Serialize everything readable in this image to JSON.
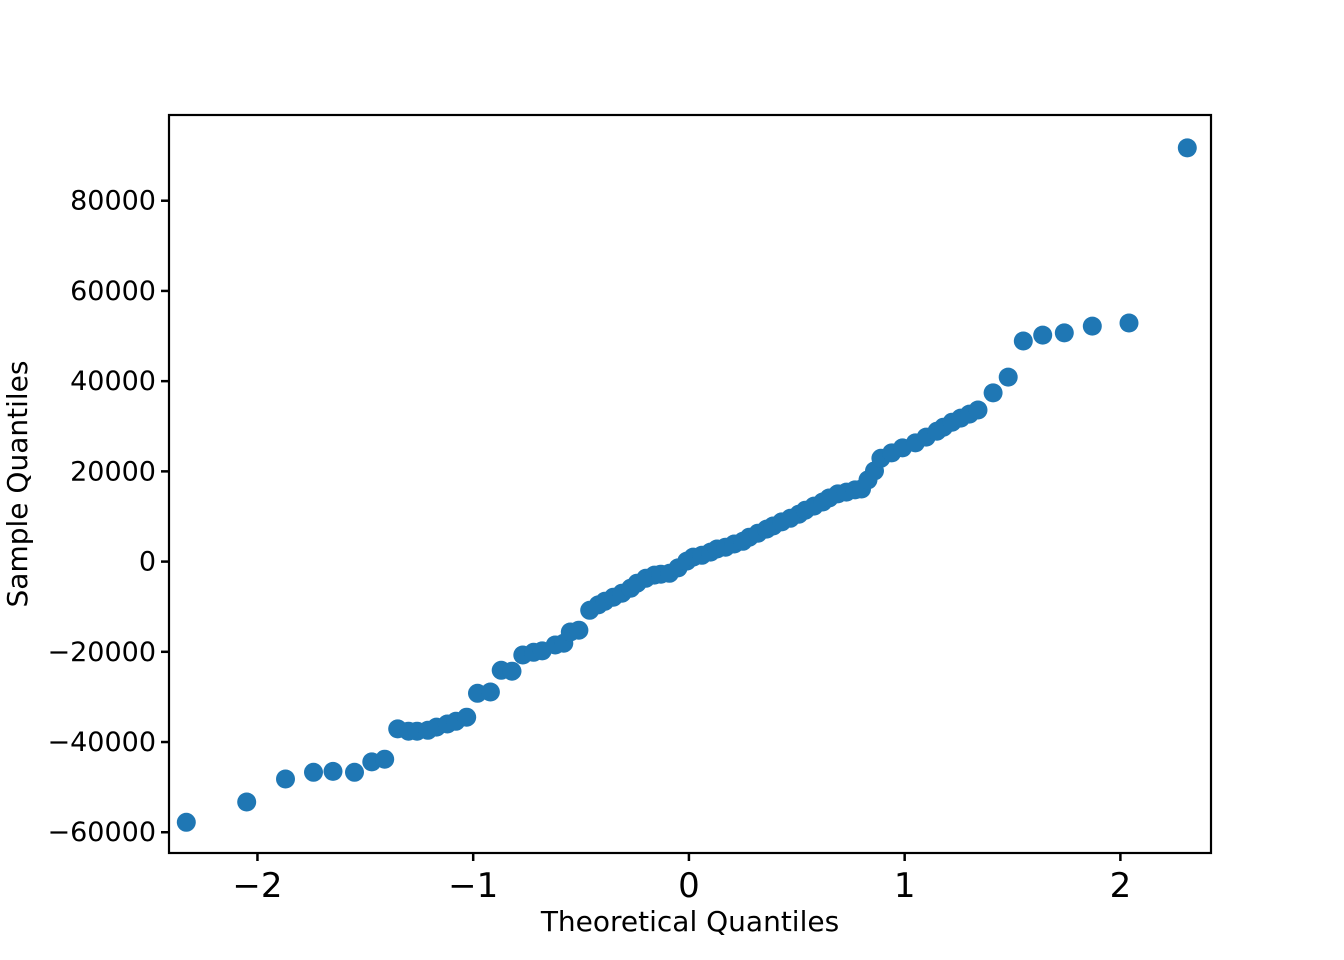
{
  "chart_data": {
    "type": "scatter",
    "title": "",
    "xlabel": "Theoretical Quantiles",
    "ylabel": "Sample Quantiles",
    "xlim": [
      -2.41,
      2.42
    ],
    "ylim": [
      -64600,
      99000
    ],
    "x_ticks": [
      -2,
      -1,
      0,
      1,
      2
    ],
    "x_tick_labels": [
      "−2",
      "−1",
      "0",
      "1",
      "2"
    ],
    "y_ticks": [
      -60000,
      -40000,
      -20000,
      0,
      20000,
      40000,
      60000,
      80000
    ],
    "y_tick_labels": [
      "−60000",
      "−40000",
      "−20000",
      "0",
      "20000",
      "40000",
      "60000",
      "80000"
    ],
    "grid": false,
    "legend": null,
    "marker": {
      "shape": "circle",
      "color": "#1f77b4",
      "radius_px": 9.5
    },
    "points": [
      [
        -2.33,
        -57800
      ],
      [
        -2.05,
        -53300
      ],
      [
        -1.87,
        -48200
      ],
      [
        -1.74,
        -46700
      ],
      [
        -1.65,
        -46500
      ],
      [
        -1.55,
        -46700
      ],
      [
        -1.47,
        -44400
      ],
      [
        -1.41,
        -43800
      ],
      [
        -1.35,
        -37100
      ],
      [
        -1.3,
        -37600
      ],
      [
        -1.26,
        -37600
      ],
      [
        -1.21,
        -37400
      ],
      [
        -1.17,
        -36700
      ],
      [
        -1.12,
        -36000
      ],
      [
        -1.08,
        -35400
      ],
      [
        -1.03,
        -34500
      ],
      [
        -0.98,
        -29200
      ],
      [
        -0.92,
        -28900
      ],
      [
        -0.87,
        -24100
      ],
      [
        -0.82,
        -24300
      ],
      [
        -0.77,
        -20700
      ],
      [
        -0.72,
        -20100
      ],
      [
        -0.68,
        -19800
      ],
      [
        -0.62,
        -18500
      ],
      [
        -0.58,
        -18100
      ],
      [
        -0.55,
        -15600
      ],
      [
        -0.51,
        -15200
      ],
      [
        -0.46,
        -10800
      ],
      [
        -0.42,
        -9600
      ],
      [
        -0.39,
        -8800
      ],
      [
        -0.35,
        -7900
      ],
      [
        -0.31,
        -7000
      ],
      [
        -0.27,
        -5900
      ],
      [
        -0.24,
        -4800
      ],
      [
        -0.2,
        -3700
      ],
      [
        -0.16,
        -3000
      ],
      [
        -0.13,
        -2800
      ],
      [
        -0.09,
        -2600
      ],
      [
        -0.05,
        -1400
      ],
      [
        -0.01,
        100
      ],
      [
        0.02,
        1000
      ],
      [
        0.06,
        1400
      ],
      [
        0.1,
        2100
      ],
      [
        0.13,
        2800
      ],
      [
        0.17,
        3200
      ],
      [
        0.21,
        3900
      ],
      [
        0.25,
        4500
      ],
      [
        0.28,
        5400
      ],
      [
        0.32,
        6300
      ],
      [
        0.36,
        7200
      ],
      [
        0.39,
        7900
      ],
      [
        0.43,
        8800
      ],
      [
        0.47,
        9600
      ],
      [
        0.51,
        10500
      ],
      [
        0.54,
        11400
      ],
      [
        0.58,
        12300
      ],
      [
        0.62,
        13200
      ],
      [
        0.65,
        14100
      ],
      [
        0.69,
        15000
      ],
      [
        0.73,
        15400
      ],
      [
        0.77,
        15900
      ],
      [
        0.8,
        16100
      ],
      [
        0.83,
        18100
      ],
      [
        0.86,
        20100
      ],
      [
        0.89,
        22900
      ],
      [
        0.94,
        24100
      ],
      [
        0.99,
        25200
      ],
      [
        1.05,
        26300
      ],
      [
        1.1,
        27600
      ],
      [
        1.15,
        28900
      ],
      [
        1.18,
        29800
      ],
      [
        1.22,
        30900
      ],
      [
        1.26,
        31800
      ],
      [
        1.3,
        32700
      ],
      [
        1.34,
        33600
      ],
      [
        1.41,
        37400
      ],
      [
        1.48,
        40900
      ],
      [
        1.55,
        48900
      ],
      [
        1.64,
        50200
      ],
      [
        1.74,
        50700
      ],
      [
        1.87,
        52200
      ],
      [
        2.04,
        52900
      ],
      [
        2.31,
        91700
      ]
    ]
  },
  "style": {
    "background_color": "#ffffff",
    "axis_color": "#000000",
    "text_color": "#000000",
    "point_color": "#1f77b4"
  }
}
